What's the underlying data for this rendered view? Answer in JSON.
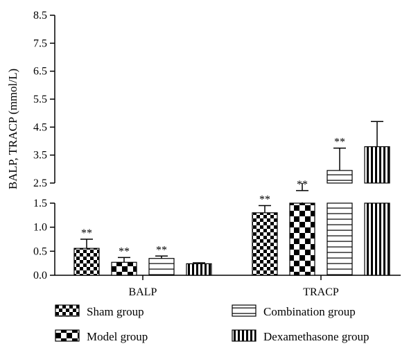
{
  "chart_data": {
    "type": "bar",
    "ylabel": "BALP, TRACP (mmol/L)",
    "categories": [
      "BALP",
      "TRACP"
    ],
    "axis_break": {
      "lower_range": [
        0,
        1.5
      ],
      "upper_range": [
        2.5,
        8.5
      ]
    },
    "lower_ticks": [
      "0.0",
      "0.5",
      "1.0",
      "1.5"
    ],
    "upper_ticks": [
      "2.5",
      "3.5",
      "4.5",
      "5.5",
      "6.5",
      "7.5",
      "8.5"
    ],
    "significance_mark": "**",
    "series": [
      {
        "name": "Sham group",
        "pattern": "fine-checker",
        "values": [
          0.56,
          1.3
        ],
        "errors": [
          0.75,
          1.45
        ],
        "significance": [
          true,
          true
        ]
      },
      {
        "name": "Model group",
        "pattern": "large-checker",
        "values": [
          0.27,
          1.75
        ],
        "errors": [
          0.37,
          2.23
        ],
        "significance": [
          true,
          true
        ]
      },
      {
        "name": "Combination group",
        "pattern": "horizontal-stripes",
        "values": [
          0.35,
          2.95
        ],
        "errors": [
          0.4,
          3.75
        ],
        "significance": [
          true,
          true
        ]
      },
      {
        "name": "Dexamethasone group",
        "pattern": "vertical-stripes",
        "values": [
          0.24,
          3.8
        ],
        "errors": [
          0.26,
          4.7
        ],
        "significance": [
          false,
          false
        ]
      }
    ],
    "legend_position": "bottom",
    "grid": false
  }
}
